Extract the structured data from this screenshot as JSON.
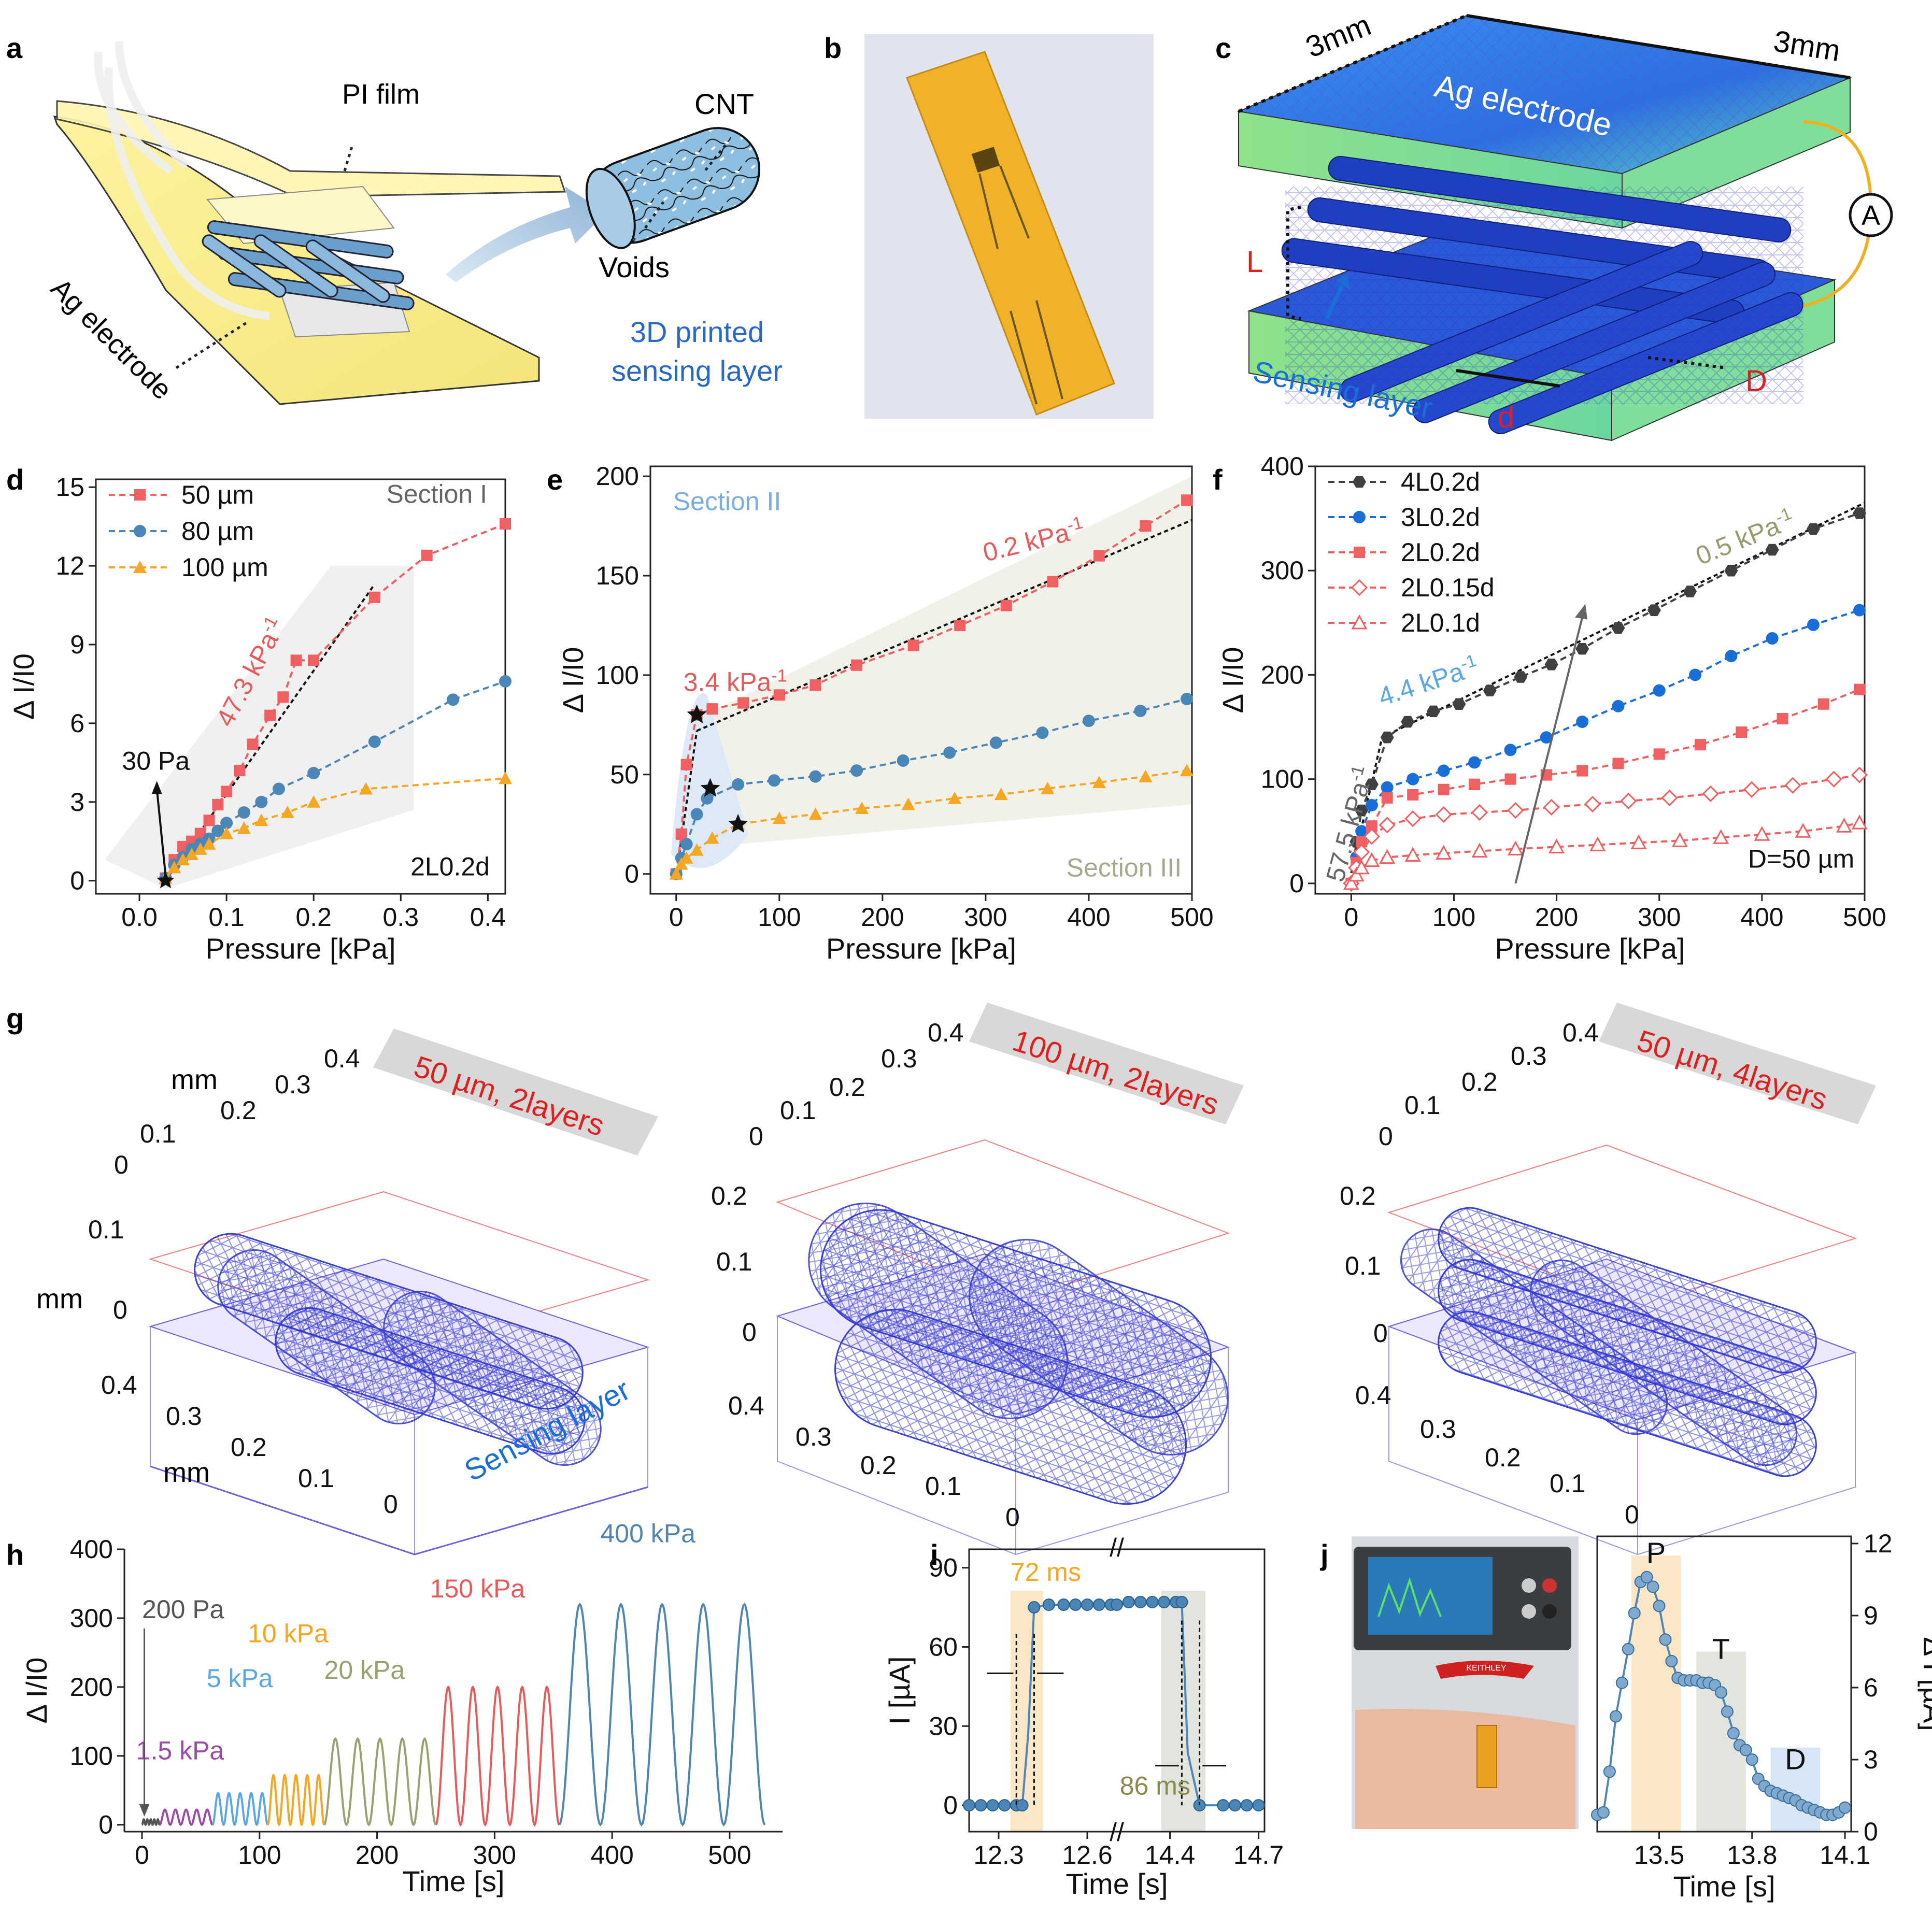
{
  "panel_labels": {
    "a": "a",
    "b": "b",
    "c": "c",
    "d": "d",
    "e": "e",
    "f": "f",
    "g": "g",
    "h": "h",
    "i": "i",
    "j": "j"
  },
  "panel_a": {
    "pi_film": "PI film",
    "ag_electrode": "Ag electrode",
    "cnt": "CNT",
    "voids": "Voids",
    "caption_line1": "3D printed",
    "caption_line2": "sensing layer"
  },
  "panel_c": {
    "dim_left": "3mm",
    "dim_right": "3mm",
    "electrode": "Ag electrode",
    "meter": "A",
    "L": "L",
    "D": "D",
    "d": "d",
    "sensing": "Sensing layer"
  },
  "colors": {
    "red": "#f06060",
    "blue": "#4a86b8",
    "orange": "#f5a623",
    "black": "#404040",
    "blue2": "#1a6ed8",
    "olive": "#9a9a70",
    "purple": "#9b4aa8",
    "lightblue": "#5aa6e6",
    "green": "#9aa070",
    "steel": "#4f86b0"
  },
  "chart_data": [
    {
      "id": "d",
      "type": "line",
      "xlabel": "Pressure [kPa]",
      "ylabel": "Δ I/I0",
      "xlim": [
        -0.05,
        0.42
      ],
      "ylim": [
        -0.5,
        15.3
      ],
      "xticks": [
        0.0,
        0.1,
        0.2,
        0.3,
        0.4
      ],
      "xtick_labels": [
        "0.0",
        "0.1",
        "0.2",
        "0.3",
        "0.4"
      ],
      "yticks": [
        0,
        3,
        6,
        9,
        12,
        15
      ],
      "ytick_labels": [
        "0",
        "3",
        "6",
        "9",
        "12",
        "15"
      ],
      "series": [
        {
          "name": "50 µm",
          "color": "#f06060",
          "marker": "square",
          "x": [
            0.03,
            0.04,
            0.05,
            0.06,
            0.07,
            0.08,
            0.09,
            0.1,
            0.115,
            0.13,
            0.15,
            0.165,
            0.18,
            0.2,
            0.27,
            0.33,
            0.42
          ],
          "y": [
            0.1,
            0.8,
            1.3,
            1.5,
            1.8,
            2.3,
            2.9,
            3.4,
            4.2,
            5.2,
            6.3,
            7.0,
            8.4,
            8.4,
            10.8,
            12.4,
            13.6
          ]
        },
        {
          "name": "80 µm",
          "color": "#4a86b8",
          "marker": "circle",
          "x": [
            0.03,
            0.04,
            0.05,
            0.06,
            0.07,
            0.08,
            0.09,
            0.1,
            0.12,
            0.14,
            0.16,
            0.2,
            0.27,
            0.36,
            0.42
          ],
          "y": [
            0.1,
            0.6,
            0.9,
            1.2,
            1.4,
            1.6,
            1.9,
            2.2,
            2.6,
            3.0,
            3.5,
            4.1,
            5.3,
            6.9,
            7.6
          ]
        },
        {
          "name": "100 µm",
          "color": "#f5a623",
          "marker": "triangle",
          "x": [
            0.03,
            0.04,
            0.05,
            0.06,
            0.07,
            0.08,
            0.1,
            0.12,
            0.14,
            0.17,
            0.2,
            0.26,
            0.42
          ],
          "y": [
            0.1,
            0.5,
            0.8,
            1.0,
            1.2,
            1.4,
            1.8,
            2.0,
            2.3,
            2.6,
            3.0,
            3.5,
            3.9
          ]
        }
      ],
      "annotations": {
        "section": "Section I",
        "slope": "47.3 kPa",
        "slope_sup": "-1",
        "onset": "30 Pa",
        "config": "2L0.2d"
      }
    },
    {
      "id": "e",
      "type": "line",
      "xlabel": "Pressure [kPa]",
      "ylabel": "Δ I/I0",
      "xlim": [
        -25,
        500
      ],
      "ylim": [
        -10,
        205
      ],
      "xticks": [
        0,
        100,
        200,
        300,
        400,
        500
      ],
      "xtick_labels": [
        "0",
        "100",
        "200",
        "300",
        "400",
        "500"
      ],
      "yticks": [
        0,
        50,
        100,
        150,
        200
      ],
      "ytick_labels": [
        "0",
        "50",
        "100",
        "150",
        "200"
      ],
      "series": [
        {
          "name": "50 µm",
          "color": "#f06060",
          "marker": "square",
          "x": [
            0,
            5,
            10,
            20,
            35,
            65,
            100,
            135,
            175,
            230,
            275,
            320,
            365,
            410,
            455,
            495
          ],
          "y": [
            0,
            20,
            55,
            80,
            83,
            86,
            90,
            95,
            105,
            115,
            125,
            135,
            147,
            160,
            175,
            188
          ]
        },
        {
          "name": "80 µm",
          "color": "#4a86b8",
          "marker": "circle",
          "x": [
            0,
            5,
            10,
            20,
            30,
            60,
            95,
            135,
            175,
            220,
            265,
            310,
            355,
            400,
            450,
            495
          ],
          "y": [
            0,
            8,
            15,
            30,
            38,
            45,
            47,
            49,
            52,
            57,
            61,
            66,
            71,
            77,
            82,
            88
          ]
        },
        {
          "name": "100 µm",
          "color": "#f5a623",
          "marker": "triangle",
          "x": [
            0,
            5,
            10,
            20,
            35,
            60,
            100,
            135,
            180,
            225,
            270,
            315,
            360,
            410,
            455,
            495
          ],
          "y": [
            0,
            5,
            8,
            12,
            18,
            25,
            28,
            30,
            33,
            35,
            38,
            40,
            43,
            46,
            49,
            52
          ]
        }
      ],
      "annotations": {
        "section2": "Section II",
        "section3": "Section III",
        "slope_a": "3.4 kPa",
        "slope_b": "0.2 kPa",
        "slope_sup": "-1"
      }
    },
    {
      "id": "f",
      "type": "line",
      "xlabel": "Pressure [kPa]",
      "ylabel": "Δ I/I0",
      "xlim": [
        -35,
        500
      ],
      "ylim": [
        -10,
        400
      ],
      "xticks": [
        0,
        100,
        200,
        300,
        400,
        500
      ],
      "xtick_labels": [
        "0",
        "100",
        "200",
        "300",
        "400",
        "500"
      ],
      "yticks": [
        0,
        100,
        200,
        300,
        400
      ],
      "ytick_labels": [
        "0",
        "100",
        "200",
        "300",
        "400"
      ],
      "series": [
        {
          "name": "4L0.2d",
          "color": "#404040",
          "marker": "hexagon",
          "x": [
            0,
            5,
            10,
            20,
            35,
            55,
            80,
            105,
            135,
            165,
            195,
            225,
            260,
            295,
            330,
            370,
            410,
            450,
            495
          ],
          "y": [
            0,
            40,
            70,
            95,
            140,
            155,
            165,
            172,
            185,
            198,
            210,
            225,
            245,
            262,
            280,
            300,
            320,
            340,
            355
          ]
        },
        {
          "name": "3L0.2d",
          "color": "#1a6ed8",
          "marker": "circle",
          "x": [
            0,
            5,
            10,
            20,
            35,
            60,
            90,
            120,
            155,
            190,
            225,
            260,
            300,
            335,
            370,
            410,
            450,
            495
          ],
          "y": [
            0,
            25,
            50,
            75,
            92,
            100,
            108,
            116,
            128,
            140,
            155,
            170,
            185,
            200,
            218,
            235,
            248,
            262
          ]
        },
        {
          "name": "2L0.2d",
          "color": "#f06060",
          "marker": "square",
          "x": [
            0,
            5,
            10,
            20,
            35,
            60,
            90,
            120,
            155,
            190,
            225,
            260,
            300,
            340,
            380,
            420,
            460,
            495
          ],
          "y": [
            0,
            20,
            40,
            55,
            82,
            85,
            90,
            95,
            100,
            104,
            108,
            115,
            124,
            133,
            145,
            158,
            172,
            186
          ]
        },
        {
          "name": "2L0.15d",
          "color": "#f06060",
          "marker": "diamond-open",
          "x": [
            0,
            5,
            10,
            20,
            35,
            60,
            90,
            125,
            160,
            195,
            235,
            270,
            310,
            350,
            390,
            430,
            470,
            495
          ],
          "y": [
            0,
            15,
            30,
            45,
            56,
            62,
            66,
            68,
            70,
            73,
            76,
            79,
            82,
            86,
            90,
            94,
            100,
            104
          ]
        },
        {
          "name": "2L0.1d",
          "color": "#f06060",
          "marker": "triangle-open",
          "x": [
            0,
            5,
            10,
            20,
            35,
            60,
            90,
            125,
            160,
            200,
            240,
            280,
            320,
            360,
            400,
            440,
            480,
            495
          ],
          "y": [
            0,
            8,
            15,
            22,
            25,
            27,
            29,
            31,
            33,
            35,
            37,
            39,
            41,
            44,
            47,
            50,
            55,
            58
          ]
        }
      ],
      "annotations": {
        "slope_a": "57.5 kPa",
        "slope_b": "4.4 kPa",
        "slope_c": "0.5 kPa",
        "slope_sup": "-1",
        "config": "D=50 µm"
      }
    },
    {
      "id": "h",
      "type": "line",
      "xlabel": "Time [s]",
      "ylabel": "Δ I/I0",
      "xlim": [
        -15,
        545
      ],
      "ylim": [
        -10,
        400
      ],
      "xticks": [
        0,
        100,
        200,
        300,
        400,
        500
      ],
      "xtick_labels": [
        "0",
        "100",
        "200",
        "300",
        "400",
        "500"
      ],
      "yticks": [
        0,
        100,
        200,
        300,
        400
      ],
      "ytick_labels": [
        "0",
        "100",
        "200",
        "300",
        "400"
      ],
      "series": [
        {
          "name": "200 Pa",
          "color": "#555555",
          "t_start": 0,
          "t_end": 15,
          "amp": 8,
          "cycles": 5
        },
        {
          "name": "1.5 kPa",
          "color": "#9b4aa8",
          "t_start": 15,
          "t_end": 60,
          "amp": 22,
          "cycles": 5
        },
        {
          "name": "5 kPa",
          "color": "#5aa6e6",
          "t_start": 60,
          "t_end": 107,
          "amp": 46,
          "cycles": 5
        },
        {
          "name": "10 kPa",
          "color": "#f5a623",
          "t_start": 107,
          "t_end": 155,
          "amp": 72,
          "cycles": 5
        },
        {
          "name": "20 kPa",
          "color": "#9aa070",
          "t_start": 155,
          "t_end": 250,
          "amp": 125,
          "cycles": 5
        },
        {
          "name": "150 kPa",
          "color": "#e85a5a",
          "t_start": 250,
          "t_end": 355,
          "amp": 200,
          "cycles": 5
        },
        {
          "name": "400 kPa",
          "color": "#4f86b0",
          "t_start": 355,
          "t_end": 530,
          "amp": 320,
          "cycles": 5
        }
      ]
    },
    {
      "id": "i",
      "type": "line",
      "xlabel": "Time [s]",
      "ylabel": "I [µA]",
      "ylim": [
        -10,
        97
      ],
      "yticks": [
        0,
        30,
        60,
        90
      ],
      "ytick_labels": [
        "0",
        "30",
        "60",
        "90"
      ],
      "xtick_labels": [
        "12.3",
        "12.6",
        "14.4",
        "14.7"
      ],
      "series": [
        {
          "name": "rise",
          "color": "#4a86b8",
          "x": [
            12.2,
            12.24,
            12.28,
            12.32,
            12.36,
            12.38,
            12.4,
            12.42,
            12.47,
            12.52,
            12.56,
            12.6,
            12.64,
            12.68
          ],
          "y": [
            0,
            0,
            0,
            0,
            0,
            0,
            27,
            75,
            76,
            76,
            76,
            76,
            76,
            76
          ]
        },
        {
          "name": "fall",
          "color": "#4a86b8",
          "x": [
            14.22,
            14.26,
            14.3,
            14.34,
            14.38,
            14.42,
            14.44,
            14.46,
            14.5,
            14.58,
            14.62,
            14.66,
            14.7
          ],
          "y": [
            76,
            77,
            77,
            77,
            77,
            77,
            77,
            20,
            0,
            0,
            0,
            0,
            0
          ]
        }
      ],
      "annotations": {
        "rise": "72 ms",
        "fall": "86 ms",
        "break": "//"
      }
    },
    {
      "id": "j",
      "type": "line",
      "xlabel": "Time [s]",
      "ylabel": "Δ I [µA]",
      "xlim": [
        13.3,
        14.12
      ],
      "ylim": [
        0,
        12.3
      ],
      "xticks": [
        13.5,
        13.8,
        14.1
      ],
      "xtick_labels": [
        "13.5",
        "13.8",
        "14.1"
      ],
      "yticks": [
        0,
        3,
        6,
        9,
        12
      ],
      "ytick_labels": [
        "0",
        "3",
        "6",
        "9",
        "12"
      ],
      "series": [
        {
          "name": "pulse",
          "color": "#4f86b0",
          "x": [
            13.3,
            13.32,
            13.34,
            13.36,
            13.38,
            13.4,
            13.42,
            13.44,
            13.46,
            13.48,
            13.5,
            13.52,
            13.54,
            13.56,
            13.58,
            13.6,
            13.62,
            13.64,
            13.66,
            13.68,
            13.7,
            13.72,
            13.74,
            13.76,
            13.78,
            13.8,
            13.82,
            13.84,
            13.86,
            13.88,
            13.9,
            13.92,
            13.94,
            13.96,
            13.98,
            14.0,
            14.02,
            14.04,
            14.06,
            14.08,
            14.1
          ],
          "y": [
            0.7,
            0.8,
            2.5,
            4.8,
            6.2,
            7.6,
            9.1,
            10.4,
            10.6,
            10.2,
            9.4,
            8.0,
            7.1,
            6.4,
            6.3,
            6.3,
            6.3,
            6.2,
            6.2,
            6.1,
            5.8,
            5.0,
            4.1,
            3.6,
            3.4,
            3.0,
            2.2,
            1.9,
            1.7,
            1.6,
            1.5,
            1.4,
            1.3,
            1.1,
            1.0,
            0.9,
            0.8,
            0.7,
            0.7,
            0.8,
            1.0
          ]
        }
      ],
      "annotations": {
        "P": "P",
        "T": "T",
        "D": "D"
      }
    }
  ],
  "panel_g": [
    {
      "title": "50 µm, 2layers",
      "unit_top": "mm",
      "unit_left": "mm",
      "unit_bottom": "mm",
      "sensing": "Sensing layer",
      "top_ticks": [
        "0",
        "0.1",
        "0.2",
        "0.3",
        "0.4"
      ],
      "left_ticks": [
        "0.1",
        "0"
      ],
      "bottom_ticks": [
        "0.4",
        "0.3",
        "0.2",
        "0.1",
        "0"
      ]
    },
    {
      "title": "100 µm, 2layers",
      "top_ticks": [
        "0",
        "0.1",
        "0.2",
        "0.3",
        "0.4"
      ],
      "left_ticks": [
        "0.2",
        "0.1",
        "0"
      ],
      "bottom_ticks": [
        "0.4",
        "0.3",
        "0.2",
        "0.1",
        "0"
      ]
    },
    {
      "title": "50 µm, 4layers",
      "top_ticks": [
        "0",
        "0.1",
        "0.2",
        "0.3",
        "0.4"
      ],
      "left_ticks": [
        "0.2",
        "0.1",
        "0"
      ],
      "bottom_ticks": [
        "0.4",
        "0.3",
        "0.2",
        "0.1",
        "0"
      ]
    }
  ],
  "panel_j": {
    "device": "KEITHLEY"
  }
}
